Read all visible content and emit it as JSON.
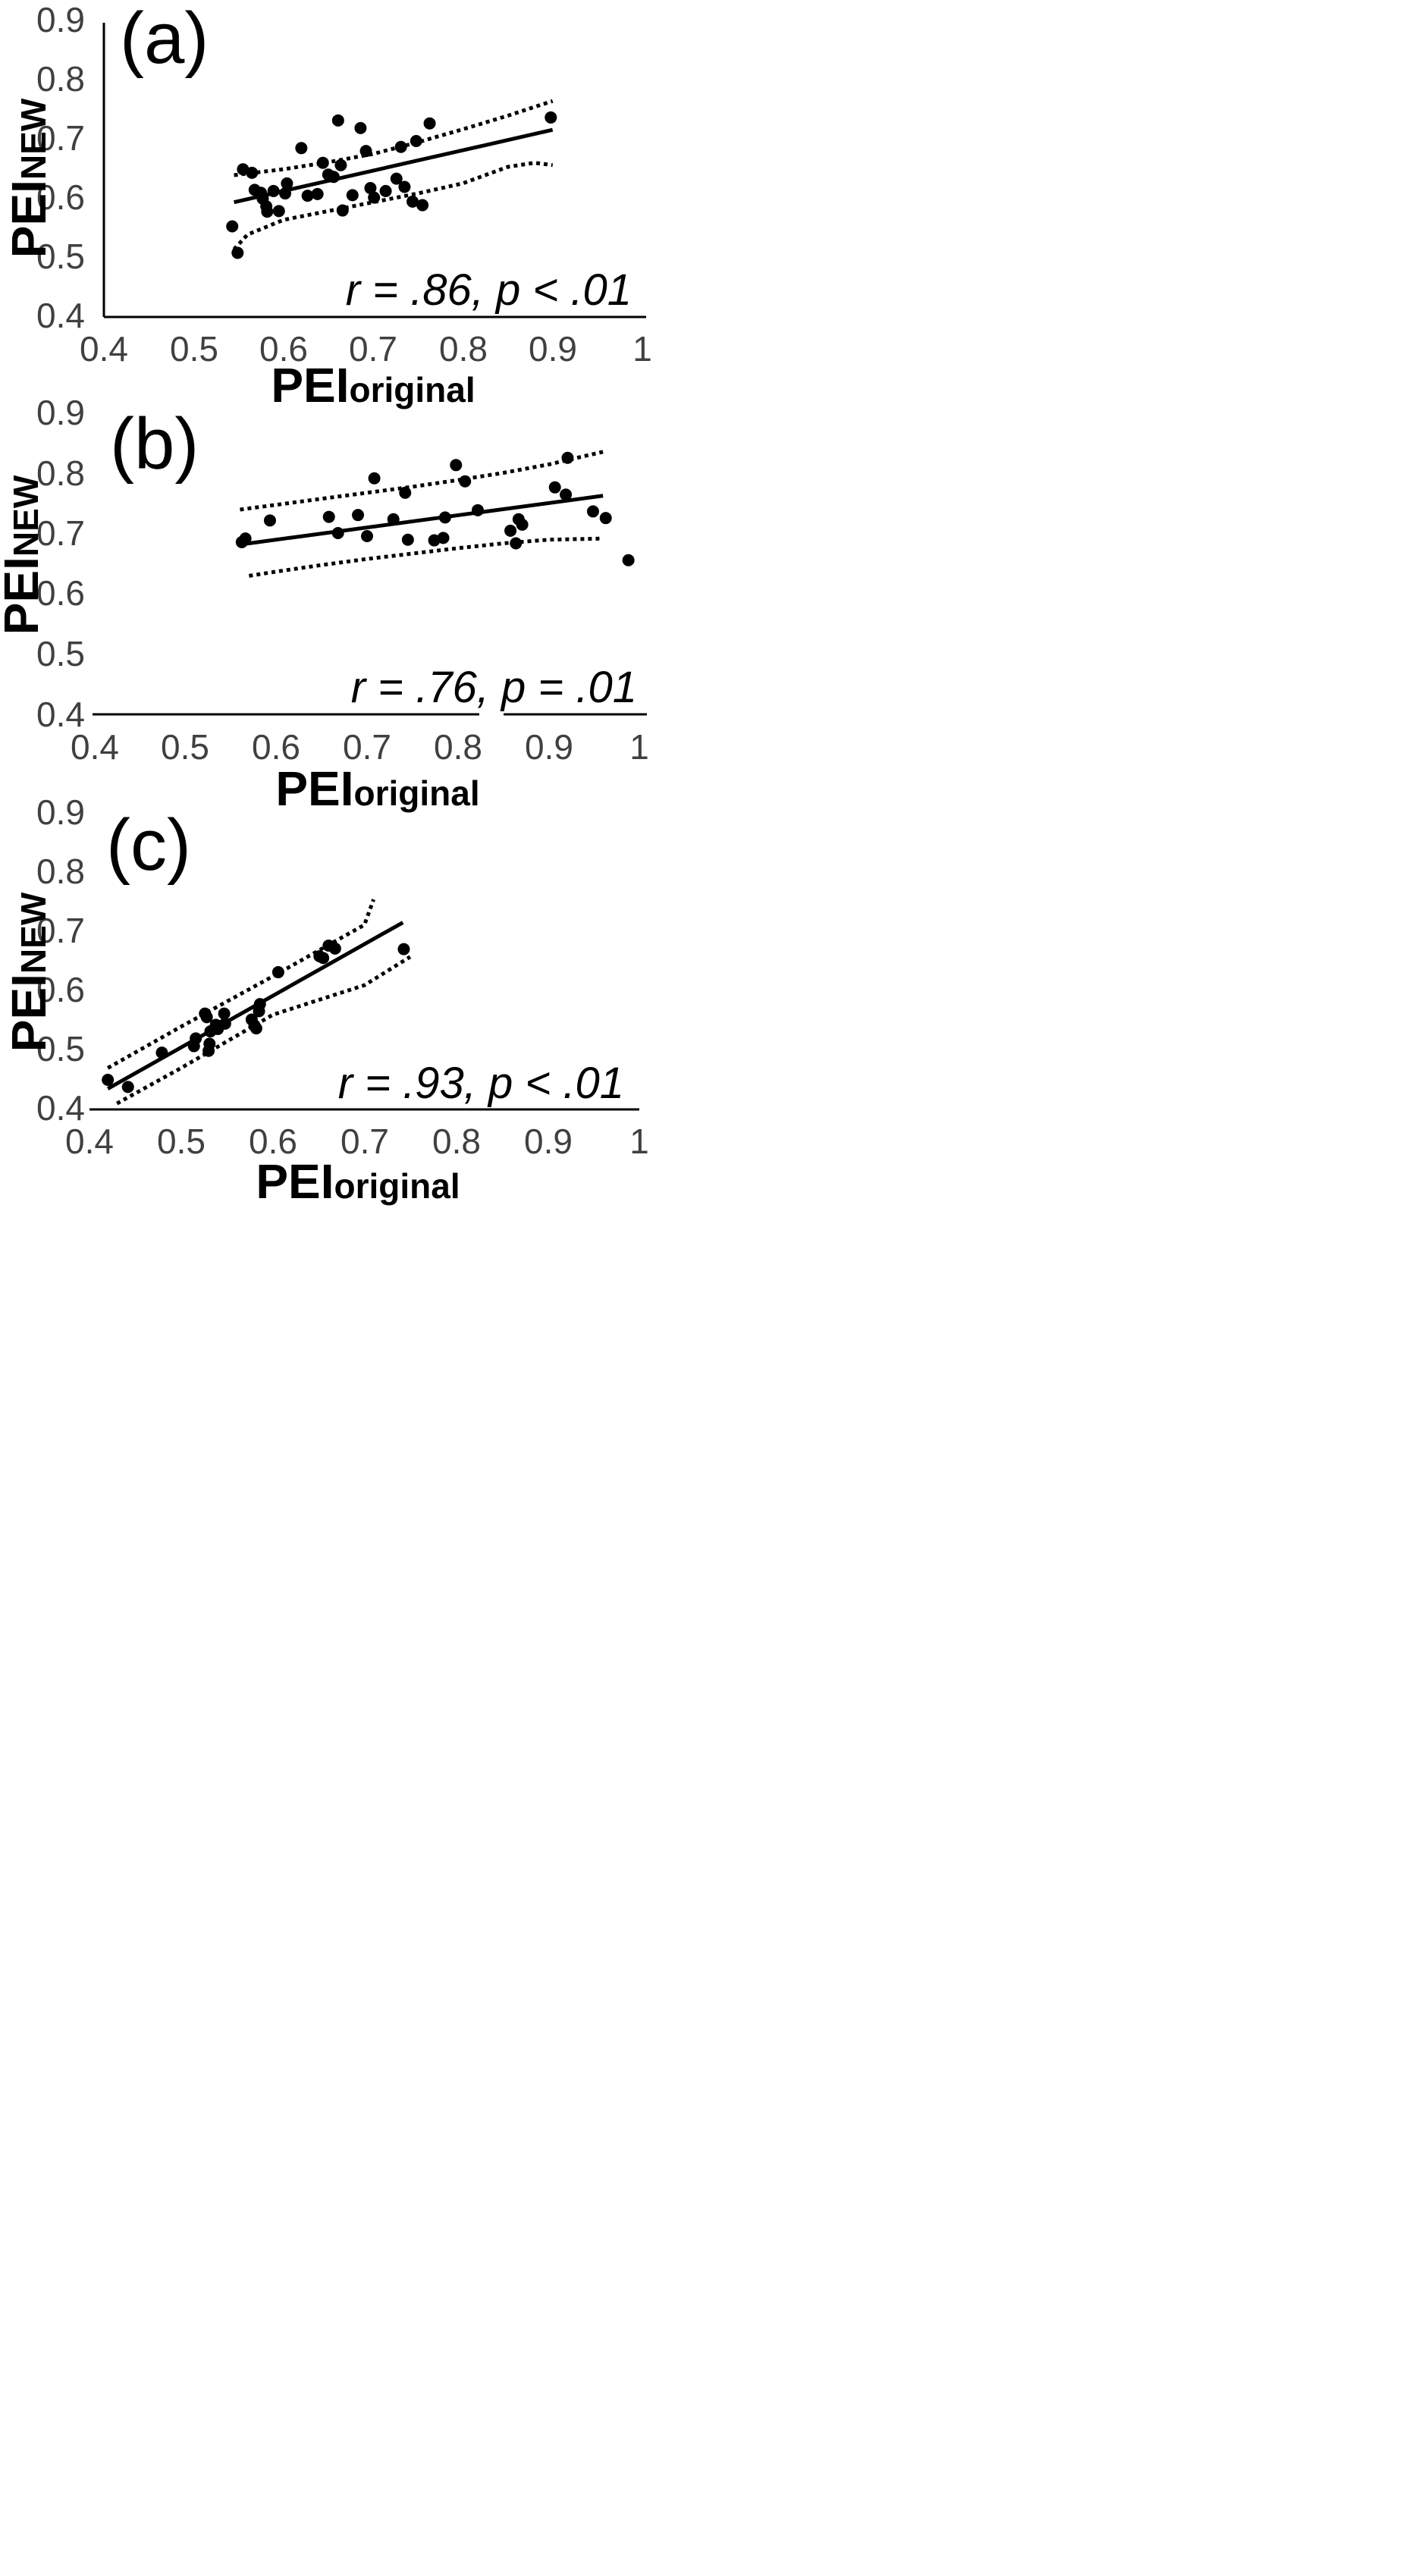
{
  "chart_data": [
    {
      "type": "scatter",
      "panel_label": "(a)",
      "xlabel": {
        "main": "PEI",
        "sub": "original"
      },
      "ylabel": {
        "main": "PEI",
        "sub": "NEW"
      },
      "xlim": [
        0.4,
        1
      ],
      "ylim": [
        0.4,
        0.9
      ],
      "xticks": [
        "0.4",
        "0.5",
        "0.6",
        "0.7",
        "0.8",
        "0.9",
        "1"
      ],
      "yticks": [
        "0.4",
        "0.5",
        "0.6",
        "0.7",
        "0.8",
        "0.9"
      ],
      "annotation": "r = .86, p < .01",
      "fit_line": [
        [
          0.545,
          0.595
        ],
        [
          0.9,
          0.718
        ]
      ],
      "ci_upper": [
        [
          0.545,
          0.641
        ],
        [
          0.6,
          0.651
        ],
        [
          0.65,
          0.663
        ],
        [
          0.7,
          0.677
        ],
        [
          0.75,
          0.697
        ],
        [
          0.8,
          0.719
        ],
        [
          0.85,
          0.742
        ],
        [
          0.9,
          0.767
        ]
      ],
      "ci_lower": [
        [
          0.545,
          0.515
        ],
        [
          0.56,
          0.54
        ],
        [
          0.6,
          0.565
        ],
        [
          0.65,
          0.58
        ],
        [
          0.7,
          0.595
        ],
        [
          0.75,
          0.61
        ],
        [
          0.8,
          0.627
        ],
        [
          0.85,
          0.655
        ],
        [
          0.88,
          0.662
        ],
        [
          0.9,
          0.658
        ]
      ],
      "points": [
        [
          0.543,
          0.554
        ],
        [
          0.549,
          0.509
        ],
        [
          0.555,
          0.651
        ],
        [
          0.565,
          0.645
        ],
        [
          0.568,
          0.616
        ],
        [
          0.575,
          0.611
        ],
        [
          0.577,
          0.601
        ],
        [
          0.581,
          0.588
        ],
        [
          0.582,
          0.579
        ],
        [
          0.589,
          0.614
        ],
        [
          0.595,
          0.58
        ],
        [
          0.602,
          0.61
        ],
        [
          0.604,
          0.627
        ],
        [
          0.62,
          0.687
        ],
        [
          0.627,
          0.606
        ],
        [
          0.638,
          0.609
        ],
        [
          0.644,
          0.662
        ],
        [
          0.65,
          0.642
        ],
        [
          0.656,
          0.638
        ],
        [
          0.661,
          0.734
        ],
        [
          0.664,
          0.658
        ],
        [
          0.666,
          0.581
        ],
        [
          0.677,
          0.607
        ],
        [
          0.686,
          0.721
        ],
        [
          0.692,
          0.682
        ],
        [
          0.697,
          0.619
        ],
        [
          0.701,
          0.603
        ],
        [
          0.714,
          0.614
        ],
        [
          0.726,
          0.635
        ],
        [
          0.731,
          0.689
        ],
        [
          0.735,
          0.621
        ],
        [
          0.744,
          0.596
        ],
        [
          0.748,
          0.699
        ],
        [
          0.755,
          0.59
        ],
        [
          0.763,
          0.729
        ],
        [
          0.898,
          0.739
        ]
      ]
    },
    {
      "type": "scatter",
      "panel_label": "(b)",
      "xlabel": {
        "main": "PEI",
        "sub": "original"
      },
      "ylabel": {
        "main": "PEI",
        "sub": "NEW"
      },
      "xlim": [
        0.4,
        1
      ],
      "ylim": [
        0.4,
        0.9
      ],
      "xticks": [
        "0.4",
        "0.5",
        "0.6",
        "0.7",
        "0.8",
        "0.9",
        "1"
      ],
      "yticks": [
        "0.4",
        "0.5",
        "0.6",
        "0.7",
        "0.8",
        "0.9"
      ],
      "annotation": "r = .76, p = .01",
      "fit_line": [
        [
          0.56,
          0.682
        ],
        [
          0.96,
          0.763
        ]
      ],
      "ci_upper": [
        [
          0.56,
          0.74
        ],
        [
          0.6,
          0.748
        ],
        [
          0.65,
          0.758
        ],
        [
          0.7,
          0.768
        ],
        [
          0.75,
          0.778
        ],
        [
          0.8,
          0.789
        ],
        [
          0.85,
          0.801
        ],
        [
          0.9,
          0.815
        ],
        [
          0.96,
          0.836
        ]
      ],
      "ci_lower": [
        [
          0.57,
          0.63
        ],
        [
          0.6,
          0.637
        ],
        [
          0.65,
          0.648
        ],
        [
          0.7,
          0.658
        ],
        [
          0.75,
          0.667
        ],
        [
          0.8,
          0.676
        ],
        [
          0.85,
          0.684
        ],
        [
          0.9,
          0.69
        ],
        [
          0.96,
          0.692
        ]
      ],
      "points": [
        [
          0.562,
          0.686
        ],
        [
          0.566,
          0.692
        ],
        [
          0.593,
          0.722
        ],
        [
          0.658,
          0.728
        ],
        [
          0.668,
          0.701
        ],
        [
          0.69,
          0.731
        ],
        [
          0.7,
          0.696
        ],
        [
          0.708,
          0.792
        ],
        [
          0.729,
          0.724
        ],
        [
          0.742,
          0.768
        ],
        [
          0.745,
          0.69
        ],
        [
          0.774,
          0.689
        ],
        [
          0.784,
          0.693
        ],
        [
          0.786,
          0.727
        ],
        [
          0.798,
          0.814
        ],
        [
          0.808,
          0.787
        ],
        [
          0.822,
          0.739
        ],
        [
          0.858,
          0.705
        ],
        [
          0.864,
          0.684
        ],
        [
          0.867,
          0.724
        ],
        [
          0.871,
          0.715
        ],
        [
          0.907,
          0.777
        ],
        [
          0.919,
          0.765
        ],
        [
          0.921,
          0.826
        ],
        [
          0.949,
          0.737
        ],
        [
          0.963,
          0.726
        ],
        [
          0.988,
          0.656
        ]
      ]
    },
    {
      "type": "scatter",
      "panel_label": "(c)",
      "xlabel": {
        "main": "PEI",
        "sub": "original"
      },
      "ylabel": {
        "main": "PEI",
        "sub": "NEW"
      },
      "xlim": [
        0.4,
        1
      ],
      "ylim": [
        0.4,
        0.9
      ],
      "xticks": [
        "0.4",
        "0.5",
        "0.6",
        "0.7",
        "0.8",
        "0.9",
        "1"
      ],
      "yticks": [
        "0.4",
        "0.5",
        "0.6",
        "0.7",
        "0.8",
        "0.9"
      ],
      "annotation": "r = .93, p < .01",
      "fit_line": [
        [
          0.42,
          0.435
        ],
        [
          0.742,
          0.716
        ]
      ],
      "ci_upper": [
        [
          0.42,
          0.47
        ],
        [
          0.5,
          0.54
        ],
        [
          0.6,
          0.625
        ],
        [
          0.7,
          0.712
        ],
        [
          0.71,
          0.755
        ]
      ],
      "ci_lower": [
        [
          0.43,
          0.41
        ],
        [
          0.5,
          0.47
        ],
        [
          0.6,
          0.56
        ],
        [
          0.7,
          0.61
        ],
        [
          0.75,
          0.658
        ]
      ],
      "points": [
        [
          0.42,
          0.45
        ],
        [
          0.442,
          0.438
        ],
        [
          0.479,
          0.496
        ],
        [
          0.514,
          0.507
        ],
        [
          0.516,
          0.52
        ],
        [
          0.526,
          0.562
        ],
        [
          0.528,
          0.556
        ],
        [
          0.53,
          0.499
        ],
        [
          0.531,
          0.511
        ],
        [
          0.532,
          0.532
        ],
        [
          0.538,
          0.543
        ],
        [
          0.54,
          0.536
        ],
        [
          0.547,
          0.562
        ],
        [
          0.548,
          0.545
        ],
        [
          0.577,
          0.552
        ],
        [
          0.58,
          0.542
        ],
        [
          0.582,
          0.537
        ],
        [
          0.585,
          0.566
        ],
        [
          0.586,
          0.578
        ],
        [
          0.606,
          0.632
        ],
        [
          0.651,
          0.659
        ],
        [
          0.655,
          0.656
        ],
        [
          0.661,
          0.677
        ],
        [
          0.668,
          0.672
        ],
        [
          0.743,
          0.671
        ]
      ]
    }
  ]
}
